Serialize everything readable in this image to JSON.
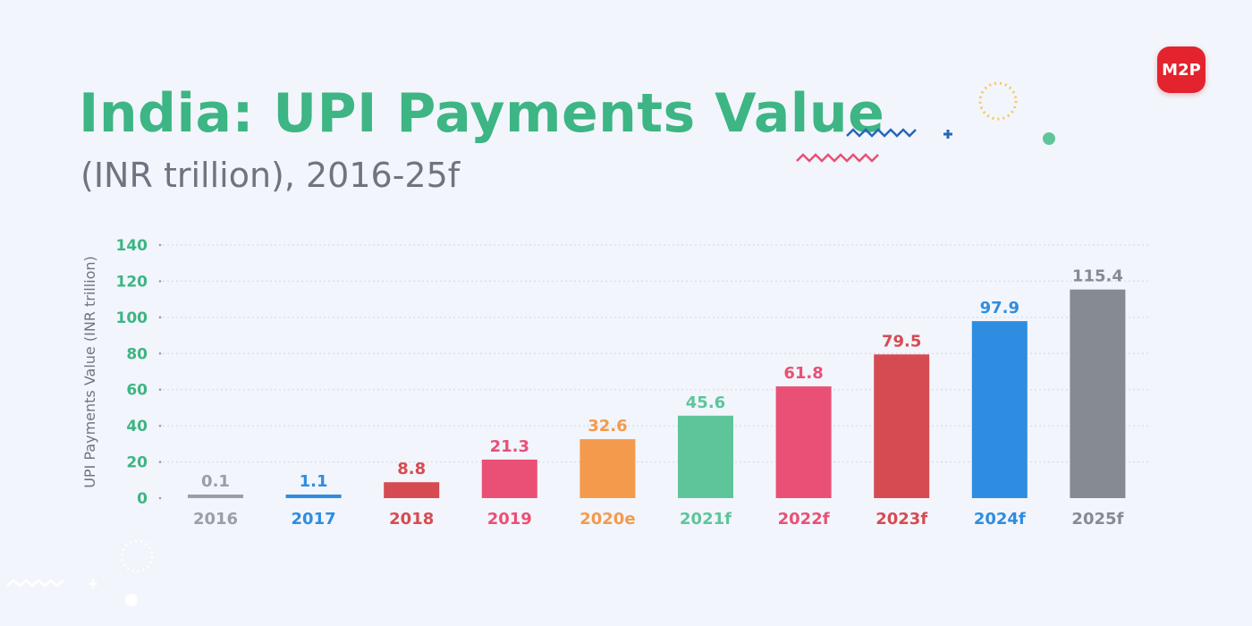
{
  "header": {
    "title": "India: UPI Payments Value",
    "subtitle": "(INR trillion), 2016-25f",
    "logo_text": "M2P"
  },
  "chart_data": {
    "type": "bar",
    "title": "India: UPI Payments Value",
    "subtitle": "(INR trillion), 2016-25f",
    "ylabel": "UPI Payments Value (INR trillion)",
    "xlabel": "",
    "ylim": [
      0,
      140
    ],
    "yticks": [
      0,
      20,
      40,
      60,
      80,
      100,
      120,
      140
    ],
    "grid": true,
    "categories": [
      "2016",
      "2017",
      "2018",
      "2019",
      "2020e",
      "2021f",
      "2022f",
      "2023f",
      "2024f",
      "2025f"
    ],
    "values": [
      0.1,
      1.1,
      8.8,
      21.3,
      32.6,
      45.6,
      61.8,
      79.5,
      97.9,
      115.4
    ],
    "value_labels": [
      "0.1",
      "1.1",
      "8.8",
      "21.3",
      "32.6",
      "45.6",
      "61.8",
      "79.5",
      "97.9",
      "115.4"
    ],
    "colors": [
      "#9a9ea6",
      "#2e8de0",
      "#d64b51",
      "#ea5075",
      "#f39a4c",
      "#5ec59b",
      "#ea5075",
      "#d64b51",
      "#2e8de0",
      "#858a93"
    ],
    "tick_color": "#3db584",
    "axis_label_color": "#6f7480"
  }
}
